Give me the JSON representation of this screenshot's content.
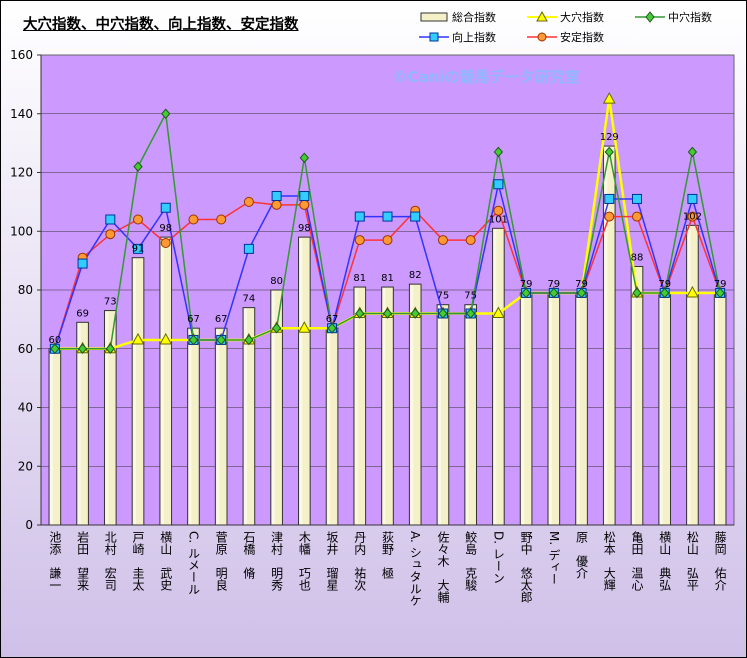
{
  "title": "大穴指数、中穴指数、向上指数、安定指数",
  "watermark": "©Caniの競馬データ研究室",
  "colors": {
    "plot_bg": "#cc99ff",
    "bar_fill": "#f4f0c8",
    "bar_stroke": "#333333",
    "daiana": "#ffff00",
    "chuuana": "#339933",
    "koujou": "#3333ff",
    "antei": "#ff3333"
  },
  "legend": {
    "total": "総合指数",
    "daiana": "大穴指数",
    "chuuana": "中穴指数",
    "koujou": "向上指数",
    "antei": "安定指数"
  },
  "chart_data": {
    "type": "bar",
    "title": "大穴指数、中穴指数、向上指数、安定指数",
    "categories": [
      "池添　謙一",
      "岩田　望来",
      "北村　宏司",
      "戸崎　圭太",
      "横山　武史",
      "C. ルメール",
      "菅原　明良",
      "石橋　脩",
      "津村　明秀",
      "木幡　巧也",
      "坂井　瑠星",
      "丹内　祐次",
      "荻野　極",
      "A. シュタルケ",
      "佐々木　大輔",
      "鮫島　克駿",
      "D. レーン",
      "野中　悠太郎",
      "M. ディー",
      "原　優介",
      "松本　大輝",
      "亀田　温心",
      "横山　典弘",
      "松山　弘平",
      "藤岡　佑介"
    ],
    "ylim": [
      0,
      160
    ],
    "yticks": [
      0,
      20,
      40,
      60,
      80,
      100,
      120,
      140,
      160
    ],
    "grid": true,
    "legend_position": "top-right",
    "series": [
      {
        "name": "総合指数",
        "kind": "bar",
        "values": [
          60,
          69,
          73,
          91,
          98,
          67,
          67,
          74,
          80,
          98,
          67,
          81,
          81,
          82,
          75,
          75,
          101,
          79,
          79,
          79,
          129,
          88,
          79,
          102,
          79
        ]
      },
      {
        "name": "大穴指数",
        "kind": "line",
        "marker": "triangle",
        "values": [
          60,
          60,
          60,
          63,
          63,
          63,
          63,
          63,
          67,
          67,
          67,
          72,
          72,
          72,
          72,
          72,
          72,
          79,
          79,
          79,
          145,
          79,
          79,
          79,
          79
        ]
      },
      {
        "name": "中穴指数",
        "kind": "line",
        "marker": "diamond",
        "values": [
          60,
          60,
          60,
          122,
          140,
          63,
          63,
          63,
          67,
          125,
          67,
          72,
          72,
          72,
          72,
          72,
          127,
          79,
          79,
          79,
          127,
          79,
          79,
          127,
          79
        ]
      },
      {
        "name": "向上指数",
        "kind": "line",
        "marker": "square",
        "values": [
          60,
          89,
          104,
          94,
          108,
          63,
          63,
          94,
          112,
          112,
          67,
          105,
          105,
          105,
          72,
          72,
          116,
          79,
          79,
          79,
          111,
          111,
          79,
          111,
          79
        ]
      },
      {
        "name": "安定指数",
        "kind": "line",
        "marker": "circle",
        "values": [
          60,
          91,
          99,
          104,
          96,
          104,
          104,
          110,
          109,
          109,
          67,
          97,
          97,
          107,
          97,
          97,
          107,
          79,
          79,
          79,
          105,
          105,
          79,
          105,
          79
        ]
      }
    ]
  }
}
